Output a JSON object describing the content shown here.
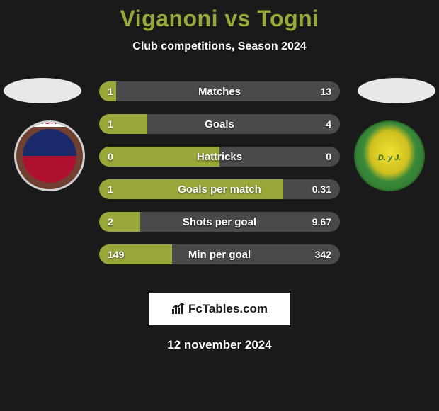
{
  "title": "Viganoni vs Togni",
  "title_color": "#9aa83a",
  "title_fontsize": 32,
  "subtitle": "Club competitions, Season 2024",
  "background_color": "#1a1a1a",
  "left": {
    "photo_placeholder_color": "#e8e8e8",
    "club_name": "TIGRE",
    "club_colors": {
      "top": "#1a2a6a",
      "bottom": "#b01030",
      "ring": "#d0d0d0"
    },
    "bar_color": "#9aa83a"
  },
  "right": {
    "photo_placeholder_color": "#e8e8e8",
    "club_name": "D. y J.",
    "club_colors": {
      "center": "#f0e030",
      "outer": "#2a6a2a"
    },
    "bar_color": "#4a4a4a"
  },
  "bars": [
    {
      "label": "Matches",
      "left_val": "1",
      "right_val": "13",
      "left_num": 1,
      "right_num": 13
    },
    {
      "label": "Goals",
      "left_val": "1",
      "right_val": "4",
      "left_num": 1,
      "right_num": 4
    },
    {
      "label": "Hattricks",
      "left_val": "0",
      "right_val": "0",
      "left_num": 0,
      "right_num": 0
    },
    {
      "label": "Goals per match",
      "left_val": "1",
      "right_val": "0.31",
      "left_num": 1,
      "right_num": 0.31
    },
    {
      "label": "Shots per goal",
      "left_val": "2",
      "right_val": "9.67",
      "left_num": 2,
      "right_num": 9.67
    },
    {
      "label": "Min per goal",
      "left_val": "149",
      "right_val": "342",
      "left_num": 149,
      "right_num": 342
    }
  ],
  "bar_style": {
    "height": 28,
    "gap": 18,
    "radius": 14,
    "label_color": "#ffffff",
    "label_fontsize": 15,
    "value_color": "#ffffff",
    "value_fontsize": 14
  },
  "brand": {
    "text": "FcTables.com",
    "box_bg": "#ffffff",
    "text_color": "#1a1a1a"
  },
  "date": "12 november 2024"
}
